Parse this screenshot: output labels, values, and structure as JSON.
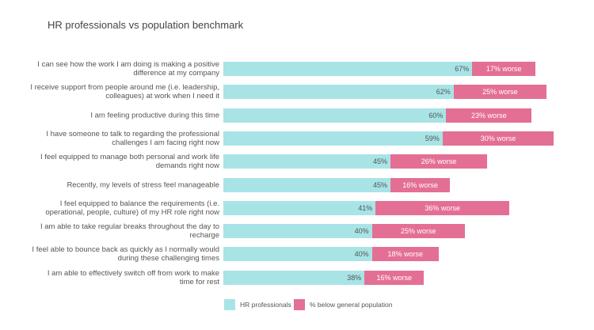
{
  "chart_data": {
    "type": "stacked-bar-horizontal",
    "title": "HR professionals vs population benchmark",
    "categories": [
      "I can see how the work I am doing is making a positive\ndifference at my company",
      "I receive support from people around me (i.e. leadership,\ncolleagues) at work when I need it",
      "I am feeling productive during this time",
      "I have someone to talk to regarding the professional\nchallenges I am facing right now",
      "I feel equipped to manage both personal and work life\ndemands right now",
      "Recently, my levels of stress feel manageable",
      "I feel equipped to balance the requirements (i.e.\noperational, people, culture) of my HR role right now",
      "I am able to take regular breaks throughout the day to\nrecharge",
      "I feel able to bounce back as quickly as I normally would\nduring these challenging times",
      "I am able to effectively switch off from work to make\ntime for rest"
    ],
    "series": [
      {
        "name": "HR professionals",
        "color": "#a8e4e6",
        "values": [
          67,
          62,
          60,
          59,
          45,
          45,
          41,
          40,
          40,
          38
        ],
        "value_labels": [
          "67%",
          "62%",
          "60%",
          "59%",
          "45%",
          "45%",
          "41%",
          "40%",
          "40%",
          "38%"
        ]
      },
      {
        "name": "% below general population",
        "color": "#e46f94",
        "values": [
          17,
          25,
          23,
          30,
          26,
          16,
          36,
          25,
          18,
          16
        ],
        "value_labels": [
          "17% worse",
          "25% worse",
          "23% worse",
          "30% worse",
          "26% worse",
          "16% worse",
          "36% worse",
          "25% worse",
          "18% worse",
          "16% worse"
        ]
      }
    ]
  }
}
